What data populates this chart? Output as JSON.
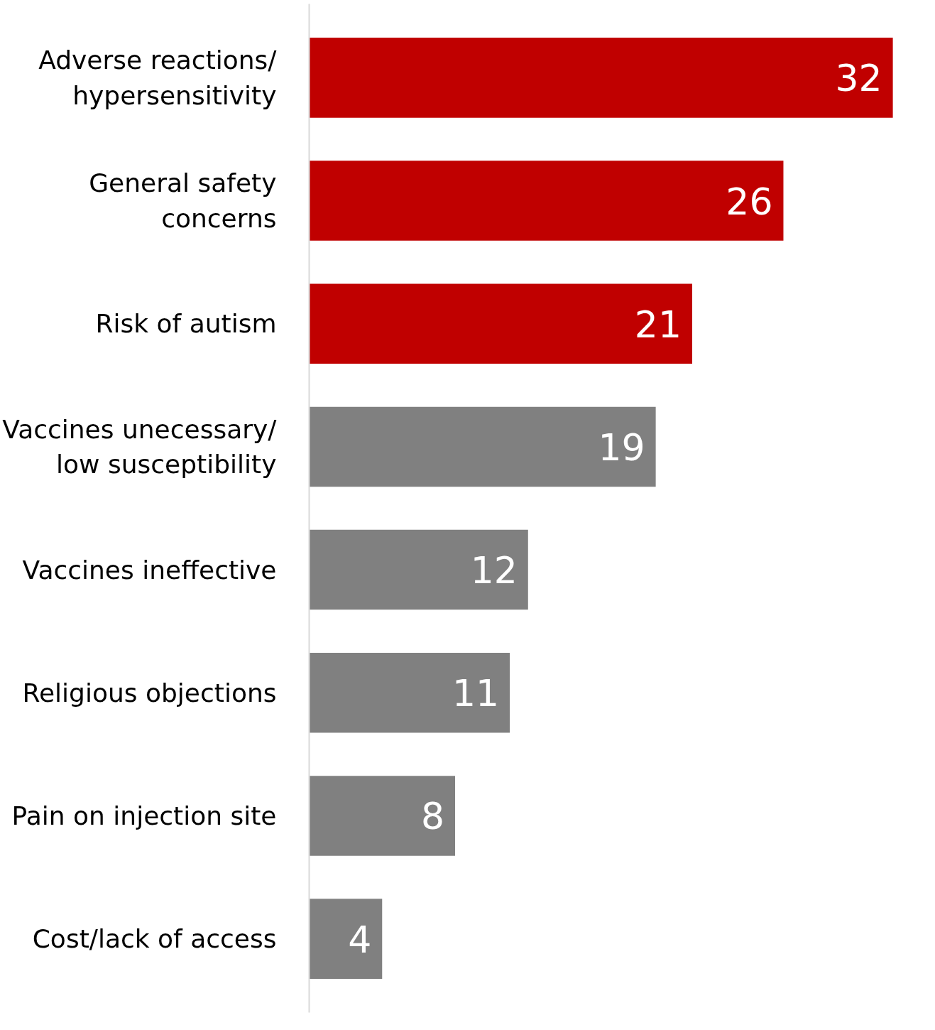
{
  "chart_data": {
    "type": "bar",
    "orientation": "horizontal",
    "categories": [
      "Adverse reactions/\nhypersensitivity",
      "General safety\nconcerns",
      "Risk of autism",
      "Vaccines unecessary/\nlow susceptibility",
      "Vaccines ineffective",
      "Religious objections",
      "Pain on injection site",
      "Cost/lack of access"
    ],
    "values": [
      32,
      26,
      21,
      19,
      12,
      11,
      8,
      4
    ],
    "colors": [
      "#c00000",
      "#c00000",
      "#c00000",
      "#808080",
      "#808080",
      "#808080",
      "#808080",
      "#808080"
    ],
    "data_labels": true
  }
}
